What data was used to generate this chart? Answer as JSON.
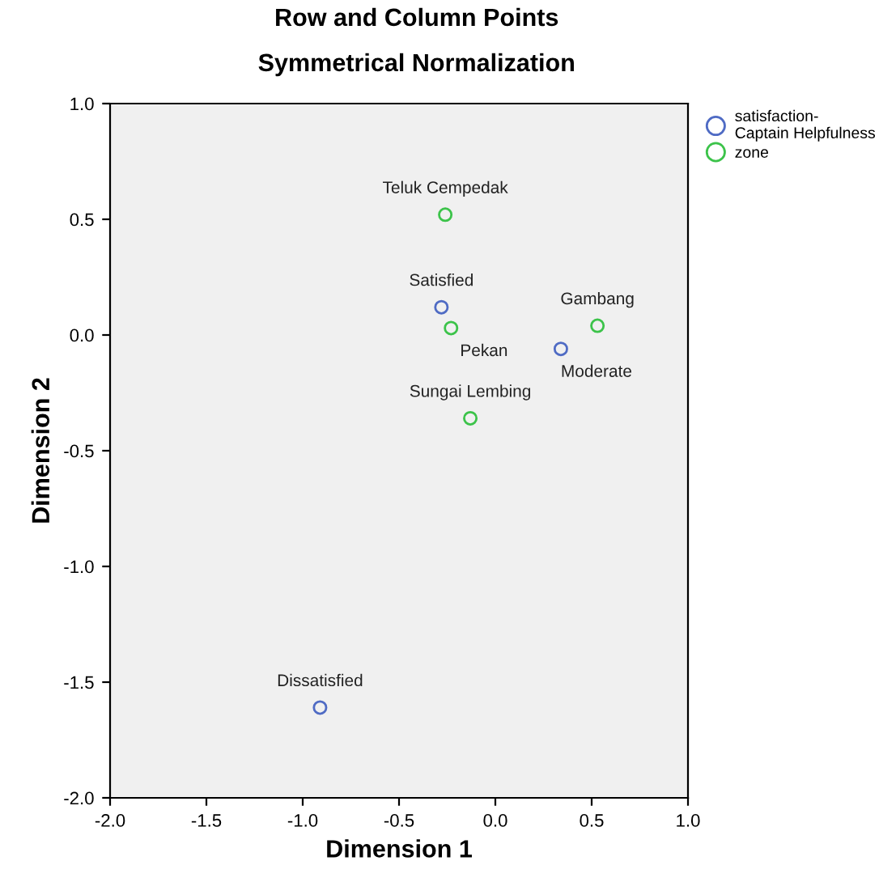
{
  "chart_data": {
    "type": "scatter",
    "title": "Row and Column Points",
    "subtitle": "Symmetrical Normalization",
    "xlabel": "Dimension 1",
    "ylabel": "Dimension 2",
    "series": [
      {
        "name": "satisfaction-\nCaptain Helpfulness",
        "color": "#4f6bc4",
        "x": [
          -0.28,
          0.34,
          -0.91
        ],
        "values": [
          0.12,
          -0.06,
          -1.61
        ]
      },
      {
        "name": "zone",
        "color": "#3cc34a",
        "x": [
          -0.26,
          -0.23,
          0.53,
          -0.13
        ],
        "values": [
          0.52,
          0.03,
          0.04,
          -0.36
        ]
      }
    ],
    "annotations": [
      {
        "text": "Satisfied",
        "x": -0.28,
        "y": 0.12
      },
      {
        "text": "Moderate",
        "x": 0.34,
        "y": -0.06
      },
      {
        "text": "Dissatisfied",
        "x": -0.91,
        "y": -1.61
      },
      {
        "text": "Teluk Cempedak",
        "x": -0.26,
        "y": 0.52
      },
      {
        "text": "Pekan",
        "x": -0.23,
        "y": 0.03
      },
      {
        "text": "Gambang",
        "x": 0.53,
        "y": 0.04
      },
      {
        "text": "Sungai Lembing",
        "x": -0.13,
        "y": -0.36
      }
    ],
    "xlim": [
      -2.0,
      1.0
    ],
    "xticks": [
      {
        "value": -2.0,
        "label": "-2.0"
      },
      {
        "value": -1.5,
        "label": "-1.5"
      },
      {
        "value": -1.0,
        "label": "-1.0"
      },
      {
        "value": -0.5,
        "label": "-0.5"
      },
      {
        "value": 0.0,
        "label": "0.0"
      },
      {
        "value": 0.5,
        "label": "0.5"
      },
      {
        "value": 1.0,
        "label": "1.0"
      }
    ],
    "ylim": [
      -2.0,
      1.0
    ],
    "yticks": [
      {
        "value": -2.0,
        "label": "-2.0"
      },
      {
        "value": -1.5,
        "label": "-1.5"
      },
      {
        "value": -1.0,
        "label": "-1.0"
      },
      {
        "value": -0.5,
        "label": "-0.5"
      },
      {
        "value": 0.0,
        "label": "0.0"
      },
      {
        "value": 0.5,
        "label": "0.5"
      },
      {
        "value": 1.0,
        "label": "1.0"
      }
    ],
    "marker": "circle",
    "legend": "top right",
    "grid": false
  }
}
